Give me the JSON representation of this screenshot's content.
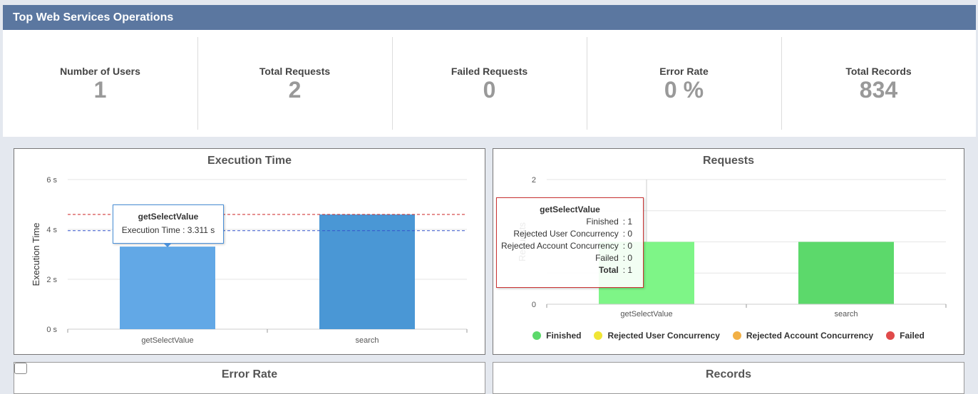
{
  "header": {
    "title": "Top Web Services Operations"
  },
  "stats": [
    {
      "label": "Number of Users",
      "value": "1"
    },
    {
      "label": "Total Requests",
      "value": "2"
    },
    {
      "label": "Failed Requests",
      "value": "0"
    },
    {
      "label": "Error Rate",
      "value": "0 %"
    },
    {
      "label": "Total Records",
      "value": "834"
    }
  ],
  "execution_panel": {
    "title": "Execution Time",
    "tooltip": {
      "title": "getSelectValue",
      "line": "Execution Time : 3.311 s"
    }
  },
  "requests_panel": {
    "title": "Requests",
    "tooltip": {
      "title": "getSelectValue",
      "rows": [
        {
          "label": "Finished",
          "value": ": 1"
        },
        {
          "label": "Rejected User Concurrency",
          "value": ": 0"
        },
        {
          "label": "Rejected Account Concurrency",
          "value": ": 0"
        },
        {
          "label": "Failed",
          "value": ": 0"
        },
        {
          "label": "Total",
          "value": ": 1"
        }
      ]
    },
    "legend": [
      {
        "label": "Finished",
        "color": "#5cd96b"
      },
      {
        "label": "Rejected User Concurrency",
        "color": "#f0e535"
      },
      {
        "label": "Rejected Account Concurrency",
        "color": "#f2b045"
      },
      {
        "label": "Failed",
        "color": "#e04a4a"
      }
    ]
  },
  "bottom_panels": {
    "error_rate_title": "Error Rate",
    "records_title": "Records"
  },
  "chart_data": [
    {
      "type": "bar",
      "title": "Execution Time",
      "ylabel": "Execution Time",
      "categories": [
        "getSelectValue",
        "search"
      ],
      "values": [
        3.311,
        4.6
      ],
      "ylim": [
        0,
        6
      ],
      "yticks": [
        0,
        2,
        4,
        6
      ],
      "ytick_labels": [
        "0 s",
        "2 s",
        "4 s",
        "6 s"
      ],
      "reference_lines": [
        {
          "value": 4.6,
          "color": "#cc2222"
        },
        {
          "value": 3.95,
          "color": "#3355cc"
        }
      ],
      "colors": [
        "#62a8e6",
        "#4a97d5"
      ]
    },
    {
      "type": "bar",
      "title": "Requests",
      "ylabel": "Requests",
      "categories": [
        "getSelectValue",
        "search"
      ],
      "series": [
        {
          "name": "Finished",
          "values": [
            1,
            1
          ]
        },
        {
          "name": "Rejected User Concurrency",
          "values": [
            0,
            0
          ]
        },
        {
          "name": "Rejected Account Concurrency",
          "values": [
            0,
            0
          ]
        },
        {
          "name": "Failed",
          "values": [
            0,
            0
          ]
        }
      ],
      "ylim": [
        0,
        2
      ],
      "yticks": [
        0,
        2
      ],
      "ytick_labels": [
        "0",
        "2"
      ]
    }
  ]
}
